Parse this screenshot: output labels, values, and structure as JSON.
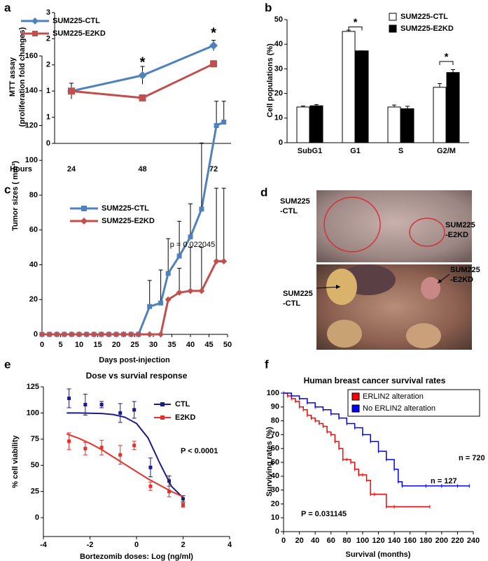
{
  "chart_data": [
    {
      "panel": "a",
      "type": "line",
      "y_label": [
        "MTT assay",
        "(proliferation fold changes)"
      ],
      "x_label": "Hours",
      "categories": [
        "24",
        "48",
        "72"
      ],
      "series": [
        {
          "name": "SUM225-CTL",
          "color": "#4f81bd",
          "marker": "diamond",
          "values": [
            1.0,
            1.3,
            1.87
          ],
          "errors": [
            0.15,
            0.17,
            0.1
          ]
        },
        {
          "name": "SUM225-E2KD",
          "color": "#c0504d",
          "marker": "square",
          "values": [
            1.0,
            0.87,
            1.52
          ],
          "errors": [
            0,
            0,
            0.06
          ]
        }
      ],
      "annotations": [
        "*",
        "*"
      ],
      "ylim": [
        0,
        2.5
      ],
      "yticks": [
        0,
        {
          "value": 0.5,
          "label": "1"
        },
        1,
        {
          "value": 1.5,
          "label": "2"
        },
        2,
        {
          "value": 2.5,
          "label": "3"
        }
      ]
    },
    {
      "panel": "b",
      "type": "bar",
      "y_label": "Cell populations (%)",
      "categories": [
        "SubG1",
        "G1",
        "S",
        "G2/M"
      ],
      "series": [
        {
          "name": "SUM225-CTL",
          "color": "#ffffff",
          "values": [
            14.5,
            45.2,
            14.5,
            22.5
          ],
          "errors": [
            0.4,
            0.5,
            0.8,
            1.5
          ]
        },
        {
          "name": "SUM225-E2KD",
          "color": "#000000",
          "values": [
            15,
            37.3,
            13.8,
            28.5
          ],
          "errors": [
            0.5,
            0,
            1,
            1.2
          ]
        }
      ],
      "annotations": [
        "*",
        "*"
      ],
      "ylim": [
        0,
        50
      ],
      "yticks": [
        0,
        10,
        20,
        30,
        40,
        50
      ]
    },
    {
      "panel": "c",
      "type": "line",
      "y_label": "Tumor sizes ( mm³)",
      "x_label": "Days post-injection",
      "x": [
        0,
        2,
        4,
        6,
        8,
        10,
        12,
        14,
        16,
        18,
        20,
        22,
        24,
        26,
        29,
        32,
        34,
        37,
        40,
        43,
        47,
        49
      ],
      "series": [
        {
          "name": "SUM225-CTL",
          "color": "#4f81bd",
          "marker": "square",
          "values": [
            0,
            0,
            0,
            0,
            0,
            0,
            0,
            0,
            0,
            0,
            0,
            0,
            0,
            0,
            16,
            18,
            35,
            45,
            56,
            72,
            120,
            122
          ],
          "errors": [
            0,
            0,
            0,
            0,
            0,
            0,
            0,
            0,
            0,
            0,
            0,
            0,
            0,
            0,
            15,
            19,
            20,
            20,
            19,
            38,
            14,
            12
          ]
        },
        {
          "name": "SUM225-E2KD",
          "color": "#c0504d",
          "marker": "diamond",
          "values": [
            0,
            0,
            0,
            0,
            0,
            0,
            0,
            0,
            0,
            0,
            0,
            0,
            0,
            0,
            0,
            0,
            20,
            24,
            25,
            25,
            42,
            42
          ],
          "errors": [
            0,
            0,
            0,
            0,
            0,
            0,
            0,
            0,
            0,
            0,
            0,
            0,
            0,
            0,
            0,
            0,
            0,
            14,
            25,
            25,
            42,
            42
          ]
        }
      ],
      "annotations": [
        "p = 0.022045"
      ],
      "xlim": [
        0,
        50
      ],
      "xticks": [
        0,
        5,
        10,
        15,
        20,
        25,
        30,
        35,
        40,
        45,
        50
      ],
      "ylim": [
        0,
        160
      ],
      "yticks": [
        0,
        20,
        40,
        60,
        80,
        100,
        120,
        140,
        160
      ]
    },
    {
      "panel": "d",
      "type": "image",
      "labels": [
        [
          "SUM225",
          "-CTL"
        ],
        [
          "SUM225",
          "-E2KD"
        ],
        [
          "SUM225",
          "-CTL"
        ],
        [
          "SUM225",
          "-E2KD"
        ]
      ]
    },
    {
      "panel": "e",
      "type": "scatter",
      "title": "Dose vs survial response",
      "y_label": "% cell viability",
      "x_label": "Bortezomib doses: Log (ng/ml)",
      "x": [
        -2.9,
        -2.2,
        -1.5,
        -0.7,
        -0.1,
        0.6,
        1.4,
        2
      ],
      "fit_x": [
        -3,
        -2.5,
        -2,
        -1.5,
        -1,
        -0.5,
        0,
        0.5,
        1,
        1.5,
        2
      ],
      "series": [
        {
          "name": "CTL",
          "color": "#1a1a8c",
          "values": [
            114,
            108,
            108,
            100,
            103,
            48,
            35,
            18
          ],
          "errors": [
            9,
            10,
            3,
            9,
            8,
            9,
            5,
            3
          ],
          "fit_values": [
            100,
            100,
            99.8,
            99.5,
            98.5,
            96,
            90,
            76,
            52,
            30,
            19
          ]
        },
        {
          "name": "E2KD",
          "color": "#e8302a",
          "values": [
            73,
            66,
            67,
            60,
            69,
            30,
            25,
            12
          ],
          "errors": [
            8,
            6,
            7,
            9,
            4,
            4,
            5,
            2
          ],
          "fit_values": [
            80,
            76,
            71,
            65,
            58,
            51,
            44,
            37,
            31,
            25,
            20
          ]
        }
      ],
      "annotations": [
        "P < 0.0001"
      ],
      "xlim": [
        -4,
        4
      ],
      "xticks": [
        -4,
        -2,
        0,
        2,
        4
      ],
      "ylim": [
        -18,
        125
      ],
      "yticks": [
        0,
        25,
        50,
        75,
        100,
        125
      ]
    },
    {
      "panel": "f",
      "type": "step",
      "title": "Human breast cancer survival rates",
      "y_label": "Surviving rates (%)",
      "x_label": "Survival (months)",
      "series": [
        {
          "name": "ERLIN2 alteration",
          "color": "#ff0000",
          "x": [
            0,
            5,
            10,
            15,
            20,
            25,
            30,
            35,
            40,
            45,
            50,
            55,
            60,
            65,
            70,
            75,
            80,
            85,
            90,
            95,
            100,
            105,
            110,
            115,
            130,
            140,
            185
          ],
          "values": [
            100,
            98,
            96,
            94,
            90,
            88,
            84,
            82,
            80,
            78,
            76,
            72,
            70,
            65,
            60,
            52,
            52,
            50,
            45,
            41,
            41,
            37,
            27,
            27,
            18,
            18,
            18
          ]
        },
        {
          "name": "No ERLIN2 alteration",
          "color": "#0000ff",
          "x": [
            0,
            10,
            20,
            30,
            40,
            50,
            60,
            70,
            80,
            90,
            100,
            110,
            120,
            130,
            140,
            145,
            150,
            180,
            200,
            220,
            235
          ],
          "values": [
            100,
            98,
            96,
            93,
            90,
            88,
            85,
            82,
            78,
            75,
            70,
            65,
            58,
            52,
            45,
            36,
            33,
            33,
            33,
            33,
            33
          ]
        }
      ],
      "annotations": [
        "n = 720",
        "n = 127",
        "P = 0.031145"
      ],
      "xlim": [
        0,
        240
      ],
      "xticks": [
        0,
        20,
        40,
        60,
        80,
        100,
        120,
        140,
        160,
        180,
        200,
        220,
        240
      ],
      "ylim": [
        0,
        100
      ],
      "yticks": [
        0,
        10,
        20,
        30,
        40,
        50,
        60,
        70,
        80,
        90,
        100
      ]
    }
  ]
}
